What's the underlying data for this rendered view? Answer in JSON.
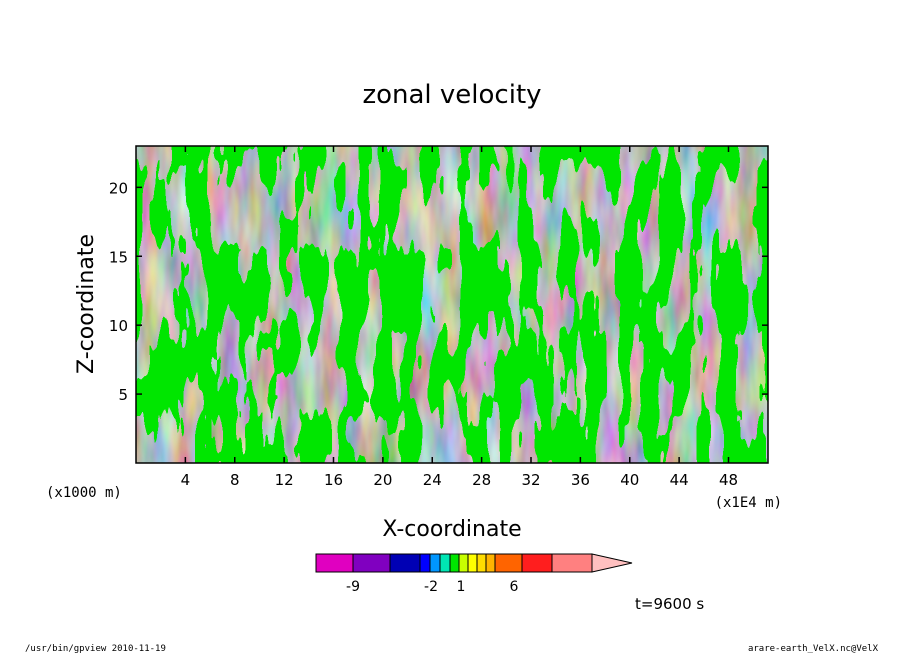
{
  "chart_data": {
    "type": "heatmap",
    "title": "zonal velocity",
    "xlabel": "X-coordinate",
    "ylabel": "Z-coordinate",
    "x_unit_left": "(x1000 m)",
    "x_unit_right": "(x1E4 m)",
    "xlim": [
      0,
      51.2
    ],
    "ylim": [
      0,
      23
    ],
    "x_ticks": [
      "4",
      "8",
      "12",
      "16",
      "20",
      "24",
      "28",
      "32",
      "36",
      "40",
      "44",
      "48"
    ],
    "x_tick_values": [
      4,
      8,
      12,
      16,
      20,
      24,
      28,
      32,
      36,
      40,
      44,
      48
    ],
    "y_ticks": [
      "5",
      "10",
      "15",
      "20"
    ],
    "y_tick_values": [
      5,
      10,
      15,
      20
    ],
    "field_colors": {
      "negative": "#00e600",
      "positive": "#ffff00",
      "contour": "#000000"
    },
    "colorbar": {
      "colors": [
        "#e000c0",
        "#8000c0",
        "#0000b4",
        "#0000ff",
        "#0096ff",
        "#00e6b4",
        "#00e600",
        "#c8ff00",
        "#ffff00",
        "#ffdc00",
        "#ffb400",
        "#ff6400",
        "#ff1e1e",
        "#ff8080",
        "#ffc0c0"
      ],
      "labels": [
        "-9",
        "-2",
        "1",
        "6"
      ]
    },
    "time_label": "t=9600 s",
    "footer_left": "/usr/bin/gpview   2010-11-19",
    "footer_right": "arare-earth_VelX.nc@VelX"
  }
}
